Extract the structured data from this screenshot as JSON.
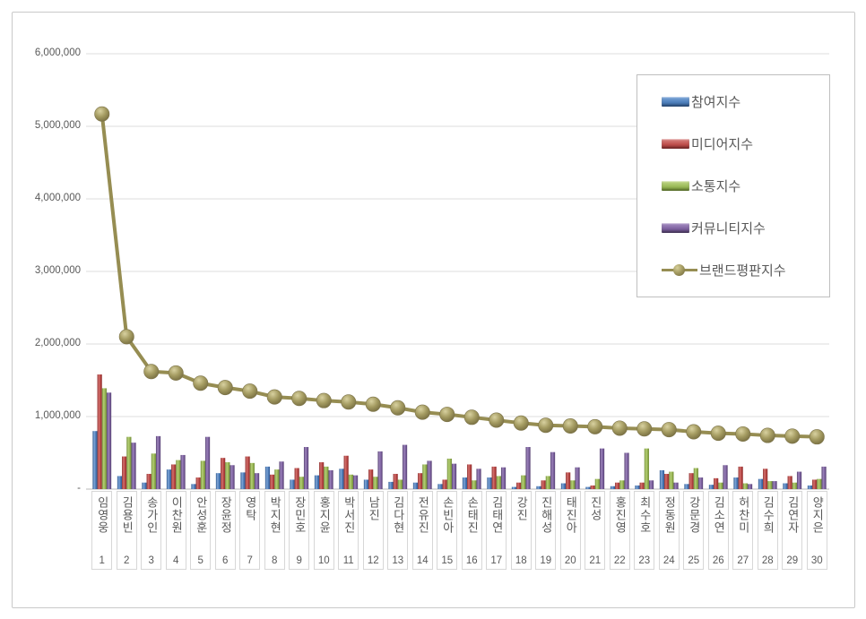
{
  "chart_data": {
    "type": "bar",
    "title": "",
    "categories": [
      "임영웅",
      "김용빈",
      "송가인",
      "이찬원",
      "안성훈",
      "장윤정",
      "영탁",
      "박지현",
      "장민호",
      "홍지윤",
      "박서진",
      "남진",
      "김다현",
      "전유진",
      "손빈아",
      "손태진",
      "김태연",
      "강진",
      "진해성",
      "태진아",
      "진성",
      "홍진영",
      "최수호",
      "정동원",
      "강문경",
      "김소연",
      "허찬미",
      "김수희",
      "김연자",
      "양지은"
    ],
    "ranks": [
      1,
      2,
      3,
      4,
      5,
      6,
      7,
      8,
      9,
      10,
      11,
      12,
      13,
      14,
      15,
      16,
      17,
      18,
      19,
      20,
      21,
      22,
      23,
      24,
      25,
      26,
      27,
      28,
      29,
      30
    ],
    "series": [
      {
        "name": "참여지수",
        "type": "bar",
        "color": "#4F81BD",
        "values": [
          800000,
          180000,
          90000,
          270000,
          70000,
          220000,
          230000,
          310000,
          130000,
          190000,
          280000,
          130000,
          100000,
          90000,
          70000,
          160000,
          160000,
          30000,
          40000,
          80000,
          30000,
          40000,
          50000,
          260000,
          70000,
          60000,
          160000,
          140000,
          80000,
          50000
        ]
      },
      {
        "name": "미디어지수",
        "type": "bar",
        "color": "#C0504D",
        "values": [
          1580000,
          450000,
          210000,
          340000,
          160000,
          430000,
          450000,
          200000,
          290000,
          370000,
          460000,
          270000,
          210000,
          220000,
          130000,
          340000,
          310000,
          90000,
          120000,
          230000,
          50000,
          90000,
          90000,
          210000,
          220000,
          150000,
          310000,
          280000,
          180000,
          130000
        ]
      },
      {
        "name": "소통지수",
        "type": "bar",
        "color": "#9BBB59",
        "values": [
          1390000,
          720000,
          490000,
          400000,
          390000,
          370000,
          360000,
          270000,
          170000,
          310000,
          200000,
          170000,
          130000,
          340000,
          420000,
          120000,
          180000,
          190000,
          180000,
          120000,
          140000,
          120000,
          560000,
          240000,
          290000,
          90000,
          80000,
          110000,
          90000,
          140000
        ]
      },
      {
        "name": "커뮤니티지수",
        "type": "bar",
        "color": "#8064A2",
        "values": [
          1330000,
          640000,
          730000,
          470000,
          720000,
          330000,
          220000,
          380000,
          580000,
          260000,
          190000,
          520000,
          610000,
          390000,
          350000,
          280000,
          300000,
          580000,
          510000,
          300000,
          560000,
          500000,
          120000,
          90000,
          160000,
          330000,
          70000,
          110000,
          240000,
          310000
        ]
      },
      {
        "name": "브랜드평판지수",
        "type": "line",
        "color": "#968D52",
        "values": [
          5170000,
          2100000,
          1620000,
          1600000,
          1460000,
          1400000,
          1350000,
          1270000,
          1250000,
          1220000,
          1200000,
          1170000,
          1120000,
          1060000,
          1030000,
          990000,
          950000,
          910000,
          880000,
          870000,
          860000,
          840000,
          830000,
          820000,
          790000,
          770000,
          760000,
          740000,
          730000,
          720000
        ]
      }
    ],
    "y_ticks": [
      {
        "value": 6000000,
        "label": "6,000,000"
      },
      {
        "value": 5000000,
        "label": "5,000,000"
      },
      {
        "value": 4000000,
        "label": "4,000,000"
      },
      {
        "value": 3000000,
        "label": "3,000,000"
      },
      {
        "value": 2000000,
        "label": "2,000,000"
      },
      {
        "value": 1000000,
        "label": "1,000,000"
      },
      {
        "value": 0,
        "label": "-"
      }
    ],
    "ylim": [
      0,
      6000000
    ],
    "xlabel": "",
    "ylabel": "",
    "grid": true,
    "legend_position": "right-top"
  },
  "legend": {
    "items": [
      {
        "label": "참여지수",
        "swatch": "blue"
      },
      {
        "label": "미디어지수",
        "swatch": "red"
      },
      {
        "label": "소통지수",
        "swatch": "green"
      },
      {
        "label": "커뮤니티지수",
        "swatch": "purple"
      },
      {
        "label": "브랜드평판지수",
        "swatch": "line"
      }
    ]
  },
  "colors": {
    "grid": "#dcdcdc",
    "axis": "#b8b8b8",
    "text": "#595959",
    "frame_border": "#c9c9c9"
  }
}
